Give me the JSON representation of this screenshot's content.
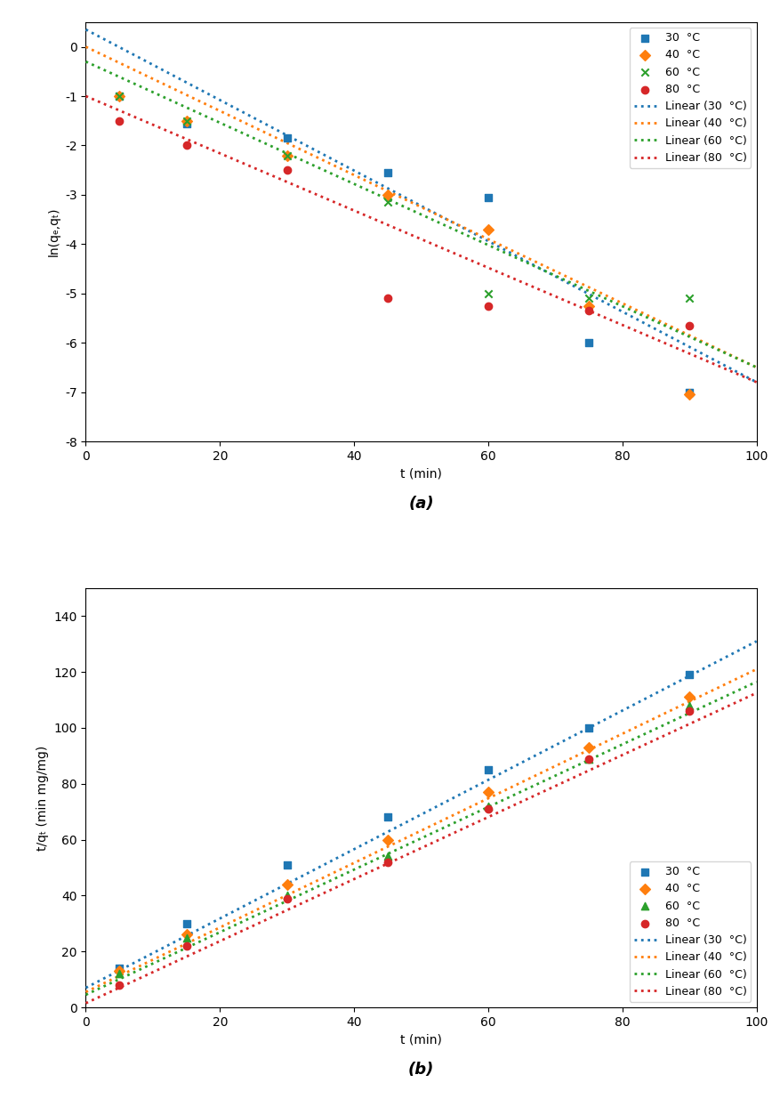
{
  "chart_data": [
    {
      "type": "scatter",
      "xlabel": "t (min)",
      "ylabel": "ln(qₑ,qₜ)",
      "annotations": [
        "(a)"
      ],
      "xlim": [
        0,
        100
      ],
      "ylim": [
        -8,
        0.5
      ],
      "xticks": [
        0,
        20,
        40,
        60,
        80,
        100
      ],
      "yticks": [
        0,
        -1,
        -2,
        -3,
        -4,
        -5,
        -6,
        -7,
        -8
      ],
      "legend": "upper right",
      "series": [
        {
          "name": "30  °C",
          "type": "scatter",
          "marker": "s",
          "color": "#1f77b4",
          "x": [
            5,
            15,
            30,
            45,
            60,
            75,
            90
          ],
          "values": [
            -1.0,
            -1.55,
            -1.85,
            -2.55,
            -3.05,
            -6.0,
            -7.0
          ]
        },
        {
          "name": "40  °C",
          "type": "scatter",
          "marker": "D",
          "color": "#ff7f0e",
          "x": [
            5,
            15,
            30,
            45,
            60,
            75,
            90
          ],
          "values": [
            -1.0,
            -1.5,
            -2.2,
            -3.0,
            -3.7,
            -5.25,
            -7.05
          ]
        },
        {
          "name": "60  °C",
          "type": "scatter",
          "marker": "x",
          "color": "#2ca02c",
          "x": [
            5,
            15,
            30,
            45,
            60,
            75,
            90
          ],
          "values": [
            -1.0,
            -1.5,
            -2.2,
            -3.15,
            -5.0,
            -5.1,
            -5.1
          ]
        },
        {
          "name": "80  °C",
          "type": "scatter",
          "marker": "o",
          "color": "#d62728",
          "x": [
            5,
            15,
            30,
            45,
            60,
            75,
            90
          ],
          "values": [
            -1.5,
            -2.0,
            -2.5,
            -5.1,
            -5.25,
            -5.35,
            -5.65
          ]
        },
        {
          "name": "Linear (30  °C)",
          "type": "line",
          "line_style": "dotted",
          "color": "#1f77b4",
          "x": [
            0,
            100
          ],
          "values": [
            0.35,
            -6.8
          ]
        },
        {
          "name": "Linear (40  °C)",
          "type": "line",
          "line_style": "dotted",
          "color": "#ff7f0e",
          "x": [
            0,
            100
          ],
          "values": [
            0.0,
            -6.5
          ]
        },
        {
          "name": "Linear (60  °C)",
          "type": "line",
          "line_style": "dotted",
          "color": "#2ca02c",
          "x": [
            0,
            100
          ],
          "values": [
            -0.3,
            -6.5
          ]
        },
        {
          "name": "Linear (80  °C)",
          "type": "line",
          "line_style": "dotted",
          "color": "#d62728",
          "x": [
            0,
            100
          ],
          "values": [
            -1.0,
            -6.8
          ]
        }
      ]
    },
    {
      "type": "scatter",
      "xlabel": "t (min)",
      "ylabel": "t/qₜ (min mg/mg)",
      "annotations": [
        "(b)"
      ],
      "xlim": [
        0,
        100
      ],
      "ylim": [
        0,
        150
      ],
      "xticks": [
        0,
        20,
        40,
        60,
        80,
        100
      ],
      "yticks": [
        0,
        20,
        40,
        60,
        80,
        100,
        120,
        140
      ],
      "legend": "lower right",
      "series": [
        {
          "name": "30  °C",
          "type": "scatter",
          "marker": "s",
          "color": "#1f77b4",
          "x": [
            5,
            15,
            30,
            45,
            60,
            75,
            90
          ],
          "values": [
            14,
            30,
            51,
            68,
            85,
            100,
            119
          ]
        },
        {
          "name": "40  °C",
          "type": "scatter",
          "marker": "D",
          "color": "#ff7f0e",
          "x": [
            5,
            15,
            30,
            45,
            60,
            75,
            90
          ],
          "values": [
            13,
            26,
            44,
            60,
            77,
            93,
            111
          ]
        },
        {
          "name": "60  °C",
          "type": "scatter",
          "marker": "^",
          "color": "#2ca02c",
          "x": [
            5,
            15,
            30,
            45,
            60,
            75,
            90
          ],
          "values": [
            12,
            25,
            40,
            54,
            72,
            89,
            108
          ]
        },
        {
          "name": "80  °C",
          "type": "scatter",
          "marker": "o",
          "color": "#d62728",
          "x": [
            5,
            15,
            30,
            45,
            60,
            75,
            90
          ],
          "values": [
            8,
            22,
            39,
            52,
            71,
            89,
            106
          ]
        },
        {
          "name": "Linear (30  °C)",
          "type": "line",
          "line_style": "dotted",
          "color": "#1f77b4",
          "x": [
            0,
            100
          ],
          "values": [
            7.0,
            131.0
          ]
        },
        {
          "name": "Linear (40  °C)",
          "type": "line",
          "line_style": "dotted",
          "color": "#ff7f0e",
          "x": [
            0,
            100
          ],
          "values": [
            5.5,
            121.0
          ]
        },
        {
          "name": "Linear (60  °C)",
          "type": "line",
          "line_style": "dotted",
          "color": "#2ca02c",
          "x": [
            0,
            100
          ],
          "values": [
            4.5,
            116.5
          ]
        },
        {
          "name": "Linear (80  °C)",
          "type": "line",
          "line_style": "dotted",
          "color": "#d62728",
          "x": [
            0,
            100
          ],
          "values": [
            1.5,
            112.5
          ]
        }
      ]
    }
  ]
}
